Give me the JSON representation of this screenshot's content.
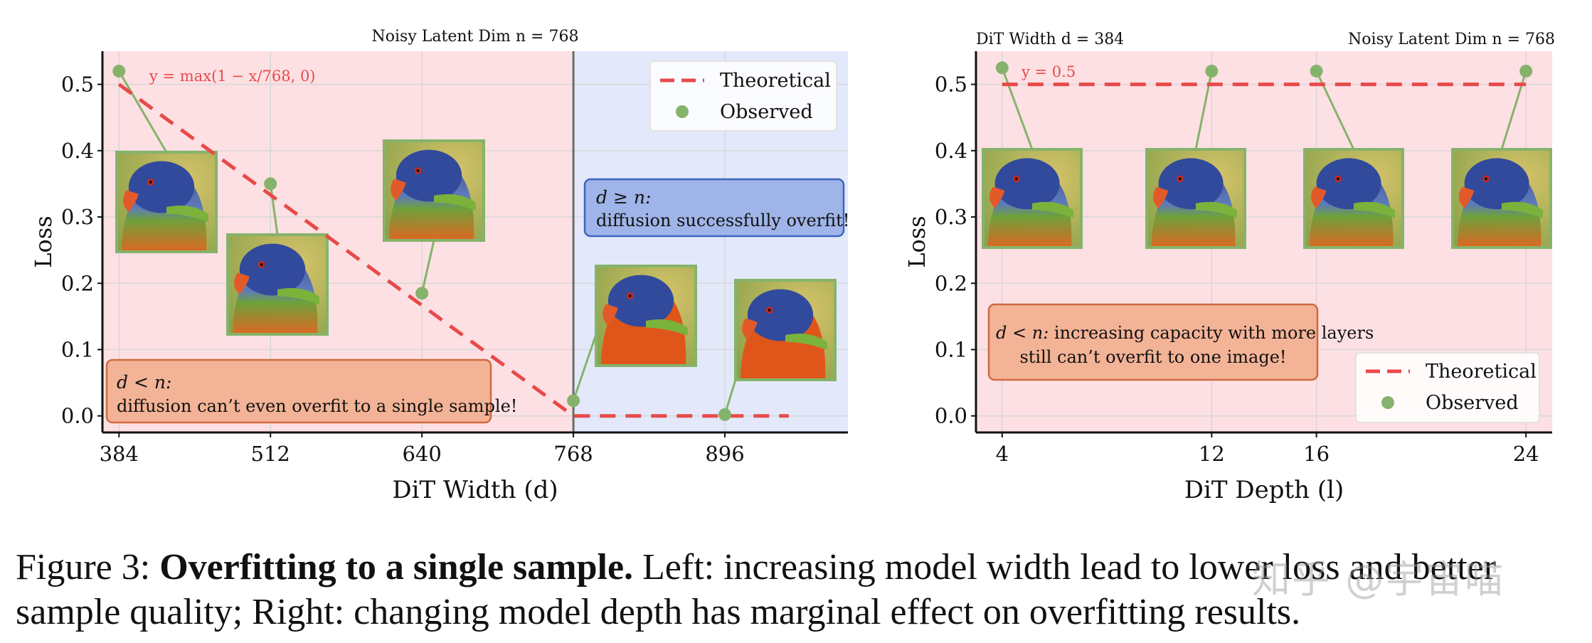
{
  "chart_data": [
    {
      "type": "line",
      "title": "Noisy Latent Dim n = 768",
      "xlabel": "DiT Width (d)",
      "ylabel": "Loss",
      "xticks": [
        "384",
        "512",
        "640",
        "768",
        "896"
      ],
      "yticks": [
        "0.0",
        "0.1",
        "0.2",
        "0.3",
        "0.4",
        "0.5"
      ],
      "xlim": [
        370,
        1000
      ],
      "ylim": [
        -0.025,
        0.55
      ],
      "vline_x": 768,
      "regions": [
        {
          "name": "d < n",
          "from": 370,
          "to": 768,
          "color": "#fde0e3"
        },
        {
          "name": "d ≥ n",
          "from": 768,
          "to": 1000,
          "color": "#e3e9fb"
        }
      ],
      "series": [
        {
          "name": "Theoretical",
          "style": "dashed",
          "color": "#e84a4a",
          "x": [
            384,
            768,
            950
          ],
          "y": [
            0.5,
            0.0,
            0.0
          ]
        },
        {
          "name": "Observed",
          "style": "markers",
          "color": "#86b36b",
          "x": [
            384,
            512,
            640,
            768,
            896
          ],
          "y": [
            0.52,
            0.35,
            0.185,
            0.023,
            0.002
          ]
        }
      ],
      "legend": [
        "Theoretical",
        "Observed"
      ],
      "formula_annotation": "y = max(1 − x/768, 0)",
      "callouts": [
        {
          "title": "d < n:",
          "text": "diffusion can’t even overfit to a single sample!",
          "color": "#f3b397"
        },
        {
          "title": "d ≥ n:",
          "text": "diffusion successfully overfit!",
          "color": "#9fb4e8"
        }
      ]
    },
    {
      "type": "line",
      "title_left": "DiT Width d = 384",
      "title_right": "Noisy Latent Dim n = 768",
      "xlabel": "DiT Depth (l)",
      "ylabel": "Loss",
      "xticks": [
        "4",
        "12",
        "16",
        "24"
      ],
      "yticks": [
        "0.0",
        "0.1",
        "0.2",
        "0.3",
        "0.4",
        "0.5"
      ],
      "xlim": [
        3,
        25
      ],
      "ylim": [
        -0.025,
        0.55
      ],
      "series": [
        {
          "name": "Theoretical",
          "style": "dashed",
          "color": "#e84a4a",
          "x": [
            4,
            24
          ],
          "y": [
            0.5,
            0.5
          ]
        },
        {
          "name": "Observed",
          "style": "markers",
          "color": "#86b36b",
          "x": [
            4,
            12,
            16,
            24
          ],
          "y": [
            0.525,
            0.52,
            0.52,
            0.52
          ]
        }
      ],
      "legend": [
        "Theoretical",
        "Observed"
      ],
      "formula_annotation": "y = 0.5",
      "callouts": [
        {
          "title": "d < n:",
          "text": "increasing capacity with more layers",
          "text2": "still can’t overfit to one image!",
          "color": "#f3b397"
        }
      ]
    }
  ],
  "caption": {
    "label": "Figure 3:",
    "bold": "Overfitting to a single sample.",
    "line1_rest": "Left: increasing model width lead to lower loss and better",
    "line2": "sample quality; Right: changing model depth has marginal effect on overfitting results."
  },
  "watermark": "知乎 @宇宙喵"
}
